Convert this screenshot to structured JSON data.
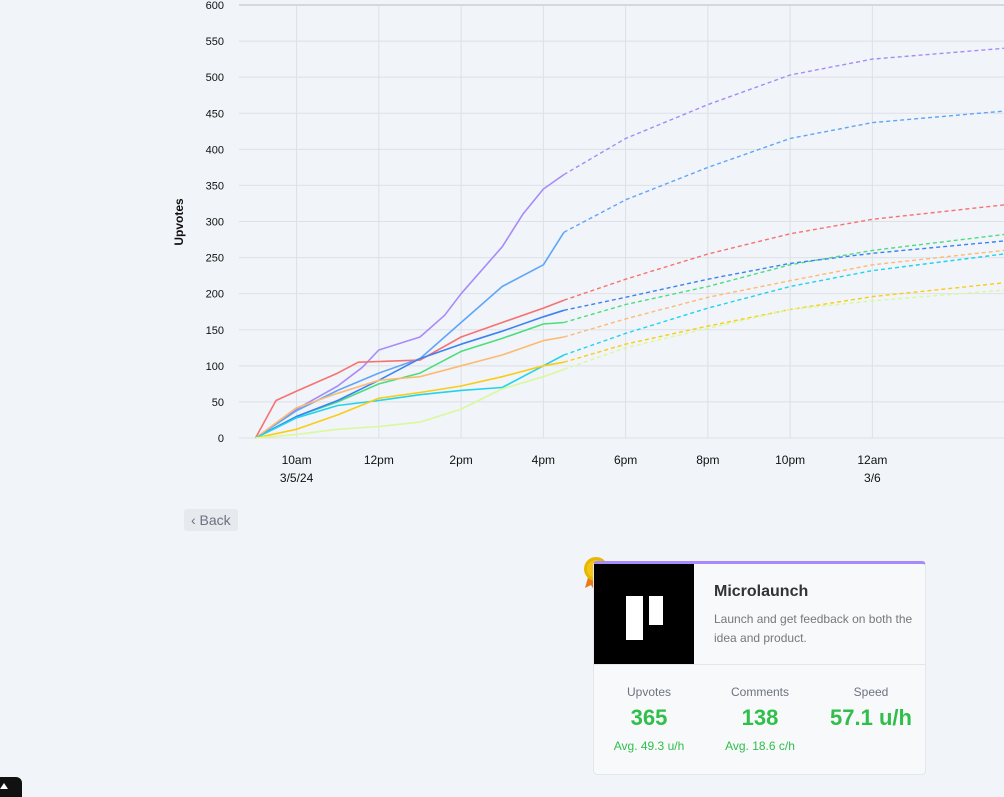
{
  "chart_data": {
    "type": "line",
    "ylabel": "Upvotes",
    "ylim": [
      0,
      600
    ],
    "yticks": [
      0,
      50,
      100,
      150,
      200,
      250,
      300,
      350,
      400,
      450,
      500,
      550,
      600
    ],
    "xlim_hours": [
      8.6,
      27.2
    ],
    "xticks": [
      {
        "h": 10,
        "l1": "10am",
        "l2": "3/5/24"
      },
      {
        "h": 12,
        "l1": "12pm",
        "l2": ""
      },
      {
        "h": 14,
        "l1": "2pm",
        "l2": ""
      },
      {
        "h": 16,
        "l1": "4pm",
        "l2": ""
      },
      {
        "h": 18,
        "l1": "6pm",
        "l2": ""
      },
      {
        "h": 20,
        "l1": "8pm",
        "l2": ""
      },
      {
        "h": 22,
        "l1": "10pm",
        "l2": ""
      },
      {
        "h": 24,
        "l1": "12am",
        "l2": "3/6"
      }
    ],
    "actual_until_hour": 16.5,
    "series": [
      {
        "color": "#a78bfa",
        "actual": [
          [
            9,
            0
          ],
          [
            10,
            40
          ],
          [
            11,
            72
          ],
          [
            11.6,
            98
          ],
          [
            12,
            122
          ],
          [
            13,
            140
          ],
          [
            13.6,
            170
          ],
          [
            14,
            200
          ],
          [
            15,
            265
          ],
          [
            15.5,
            310
          ],
          [
            16,
            345
          ],
          [
            16.5,
            365
          ]
        ],
        "projected": [
          [
            16.5,
            365
          ],
          [
            18,
            415
          ],
          [
            20,
            462
          ],
          [
            22,
            503
          ],
          [
            24,
            525
          ],
          [
            27.2,
            540
          ]
        ]
      },
      {
        "color": "#60a5fa",
        "actual": [
          [
            9,
            0
          ],
          [
            10,
            38
          ],
          [
            11,
            66
          ],
          [
            12,
            90
          ],
          [
            13,
            110
          ],
          [
            14,
            160
          ],
          [
            15,
            210
          ],
          [
            16,
            240
          ],
          [
            16.5,
            285
          ]
        ],
        "projected": [
          [
            16.5,
            285
          ],
          [
            18,
            330
          ],
          [
            20,
            375
          ],
          [
            22,
            415
          ],
          [
            24,
            437
          ],
          [
            27.2,
            453
          ]
        ]
      },
      {
        "color": "#f87171",
        "actual": [
          [
            9,
            0
          ],
          [
            9.5,
            52
          ],
          [
            10,
            65
          ],
          [
            11,
            90
          ],
          [
            11.5,
            105
          ],
          [
            12,
            106
          ],
          [
            13,
            108
          ],
          [
            14,
            140
          ],
          [
            15,
            160
          ],
          [
            16,
            180
          ],
          [
            16.5,
            191
          ]
        ],
        "projected": [
          [
            16.5,
            191
          ],
          [
            18,
            220
          ],
          [
            20,
            255
          ],
          [
            22,
            283
          ],
          [
            24,
            303
          ],
          [
            27.2,
            323
          ]
        ]
      },
      {
        "color": "#4ade80",
        "actual": [
          [
            9,
            0
          ],
          [
            10,
            30
          ],
          [
            11,
            50
          ],
          [
            12,
            75
          ],
          [
            13,
            90
          ],
          [
            14,
            120
          ],
          [
            15,
            138
          ],
          [
            16,
            158
          ],
          [
            16.5,
            160
          ]
        ],
        "projected": [
          [
            16.5,
            160
          ],
          [
            18,
            185
          ],
          [
            20,
            210
          ],
          [
            22,
            240
          ],
          [
            24,
            260
          ],
          [
            27.2,
            282
          ]
        ]
      },
      {
        "color": "#3b82f6",
        "actual": [
          [
            9,
            0
          ],
          [
            10,
            30
          ],
          [
            11,
            52
          ],
          [
            12,
            80
          ],
          [
            13,
            110
          ],
          [
            14,
            130
          ],
          [
            15,
            148
          ],
          [
            16,
            168
          ],
          [
            16.5,
            177
          ]
        ],
        "projected": [
          [
            16.5,
            177
          ],
          [
            18,
            195
          ],
          [
            20,
            220
          ],
          [
            22,
            242
          ],
          [
            24,
            256
          ],
          [
            27.2,
            273
          ]
        ]
      },
      {
        "color": "#fdba74",
        "actual": [
          [
            9,
            0
          ],
          [
            10,
            42
          ],
          [
            11,
            62
          ],
          [
            12,
            80
          ],
          [
            13,
            85
          ],
          [
            14,
            100
          ],
          [
            15,
            115
          ],
          [
            16,
            135
          ],
          [
            16.5,
            140
          ]
        ],
        "projected": [
          [
            16.5,
            140
          ],
          [
            18,
            165
          ],
          [
            20,
            195
          ],
          [
            22,
            218
          ],
          [
            24,
            240
          ],
          [
            27.2,
            260
          ]
        ]
      },
      {
        "color": "#22d3ee",
        "actual": [
          [
            9,
            0
          ],
          [
            10,
            28
          ],
          [
            11,
            45
          ],
          [
            12,
            52
          ],
          [
            13,
            60
          ],
          [
            14,
            66
          ],
          [
            15,
            70
          ],
          [
            16,
            100
          ],
          [
            16.5,
            115
          ]
        ],
        "projected": [
          [
            16.5,
            115
          ],
          [
            18,
            145
          ],
          [
            20,
            180
          ],
          [
            22,
            210
          ],
          [
            24,
            232
          ],
          [
            27.2,
            255
          ]
        ]
      },
      {
        "color": "#facc15",
        "actual": [
          [
            9,
            0
          ],
          [
            10,
            12
          ],
          [
            11,
            32
          ],
          [
            12,
            55
          ],
          [
            13,
            63
          ],
          [
            14,
            72
          ],
          [
            15,
            85
          ],
          [
            16,
            100
          ],
          [
            16.5,
            105
          ]
        ],
        "projected": [
          [
            16.5,
            105
          ],
          [
            18,
            130
          ],
          [
            20,
            155
          ],
          [
            22,
            178
          ],
          [
            24,
            196
          ],
          [
            27.2,
            215
          ]
        ]
      },
      {
        "color": "#d9f99d",
        "actual": [
          [
            9,
            0
          ],
          [
            10,
            5
          ],
          [
            11,
            12
          ],
          [
            12,
            16
          ],
          [
            13,
            22
          ],
          [
            14,
            40
          ],
          [
            15,
            68
          ],
          [
            16,
            85
          ],
          [
            16.5,
            95
          ]
        ],
        "projected": [
          [
            16.5,
            95
          ],
          [
            18,
            125
          ],
          [
            20,
            152
          ],
          [
            22,
            178
          ],
          [
            24,
            190
          ],
          [
            27.2,
            205
          ]
        ]
      }
    ]
  },
  "nav": {
    "back_label": "‹ Back"
  },
  "card": {
    "rank": "1",
    "title": "Microlaunch",
    "description": "Launch and get feedback on both the idea and product.",
    "stats": [
      {
        "label": "Upvotes",
        "value": "365",
        "avg": "Avg. 49.3 u/h"
      },
      {
        "label": "Comments",
        "value": "138",
        "avg": "Avg. 18.6 c/h"
      },
      {
        "label": "Speed",
        "value": "57.1 u/h",
        "avg": ""
      }
    ],
    "accent_color": "#a78bfa",
    "value_color": "#2fbf4a"
  }
}
